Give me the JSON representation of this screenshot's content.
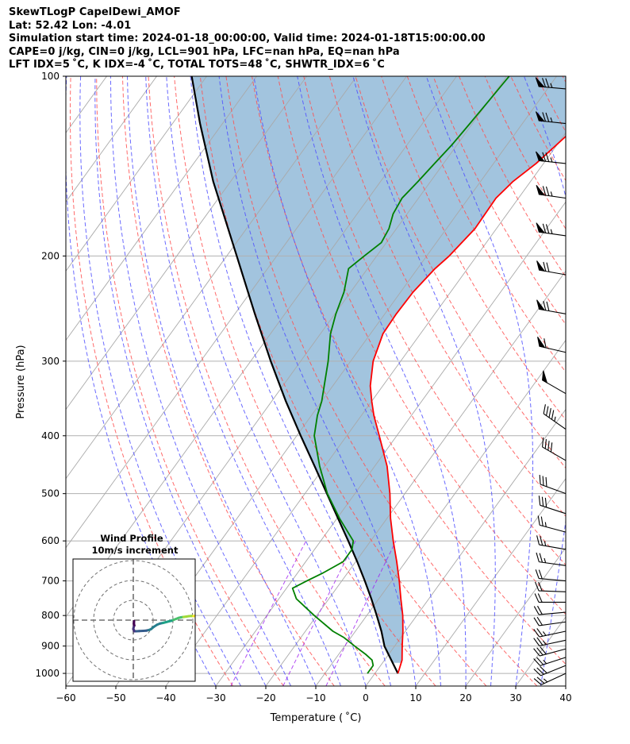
{
  "header": {
    "line1": "SkewTLogP CapelDewi_AMOF",
    "line2": "Lat: 52.42   Lon: -4.01",
    "line3": "Simulation start time: 2024-01-18_00:00:00, Valid time: 2024-01-18T15:00:00.00",
    "line4": "CAPE=0 j/kg, CIN=0 j/kg, LCL=901 hPa, LFC=nan hPa, EQ=nan hPa",
    "line5": "LFT IDX=5 ˚C, K IDX=-4 ˚C, TOTAL TOTS=48 ˚C, SHWTR_IDX=6 ˚C"
  },
  "hodograph": {
    "title": "Wind Profile",
    "subtitle": "10m/s increment"
  },
  "colors": {
    "temperature": "#ff0000",
    "dewpoint": "#008000",
    "parcel": "#000000",
    "cape_shade": "#a2c4de",
    "dry_adiabat": "#ff5050",
    "moist_adiabat": "#5050ff",
    "mixing_ratio": "#a020f0",
    "isotherm": "#a9a9a9"
  },
  "chart_data": {
    "type": "line",
    "title": "",
    "xlabel": "Temperature ( ˚C)",
    "ylabel": "Pressure (hPa)",
    "xlim": [
      -60,
      40
    ],
    "ylim_pressure": [
      1050,
      100
    ],
    "y_scale": "log",
    "skew": true,
    "x_ticks": [
      "−60",
      "−50",
      "−40",
      "−30",
      "−20",
      "−10",
      "0",
      "10",
      "20",
      "30",
      "40"
    ],
    "y_ticks": [
      "100",
      "200",
      "300",
      "400",
      "500",
      "600",
      "700",
      "800",
      "900",
      "1000"
    ],
    "grid": true,
    "series": [
      {
        "name": "Temperature",
        "pressure": [
          1000,
          950,
          900,
          850,
          800,
          750,
          700,
          650,
          600,
          550,
          500,
          450,
          400,
          370,
          350,
          330,
          300,
          270,
          250,
          230,
          210,
          200,
          180,
          160,
          150,
          140,
          120,
          100
        ],
        "values": [
          4.6,
          3.5,
          1.5,
          -0.5,
          -2.8,
          -5.6,
          -8.5,
          -11.8,
          -15.5,
          -19.3,
          -23.0,
          -27.5,
          -33.5,
          -37.5,
          -40.0,
          -42.5,
          -45.5,
          -47.5,
          -47.7,
          -47.5,
          -46.5,
          -45.5,
          -44.3,
          -44.5,
          -43.5,
          -41.5,
          -38.5,
          -36.0
        ]
      },
      {
        "name": "Dewpoint",
        "pressure": [
          1000,
          970,
          950,
          930,
          900,
          870,
          850,
          800,
          750,
          720,
          700,
          680,
          650,
          620,
          600,
          550,
          500,
          450,
          400,
          370,
          350,
          300,
          270,
          250,
          230,
          210,
          200,
          190,
          180,
          170,
          160,
          150,
          140,
          130,
          120,
          110,
          100
        ],
        "values": [
          -1.5,
          -1.5,
          -2.5,
          -4.5,
          -8.0,
          -11.5,
          -14.5,
          -20.5,
          -26.5,
          -28.8,
          -27.0,
          -25.0,
          -22.5,
          -22.5,
          -23.5,
          -29.5,
          -35.5,
          -41.0,
          -46.5,
          -48.8,
          -50.0,
          -54.5,
          -58.0,
          -59.8,
          -61.3,
          -63.8,
          -62.5,
          -61.0,
          -61.5,
          -62.8,
          -63.3,
          -62.5,
          -61.8,
          -61.0,
          -60.5,
          -60.0,
          -59.5
        ]
      },
      {
        "name": "Parcel",
        "pressure": [
          1000,
          901,
          850,
          800,
          750,
          700,
          650,
          600,
          550,
          500,
          450,
          400,
          350,
          300,
          250,
          200,
          150,
          120,
          100
        ],
        "values": [
          4.6,
          -2.0,
          -4.8,
          -8.0,
          -11.5,
          -15.4,
          -19.7,
          -24.5,
          -29.8,
          -35.6,
          -42.0,
          -49.2,
          -57.2,
          -66.0,
          -76.0,
          -88.0,
          -103.5,
          -114.5,
          -123.0
        ]
      }
    ],
    "wind_barbs": [
      {
        "pressure": 1000,
        "speed_kt": 27,
        "direction_deg": 245
      },
      {
        "pressure": 970,
        "speed_kt": 28,
        "direction_deg": 248
      },
      {
        "pressure": 940,
        "speed_kt": 27,
        "direction_deg": 252
      },
      {
        "pressure": 910,
        "speed_kt": 28,
        "direction_deg": 255
      },
      {
        "pressure": 880,
        "speed_kt": 26,
        "direction_deg": 258
      },
      {
        "pressure": 850,
        "speed_kt": 24,
        "direction_deg": 258
      },
      {
        "pressure": 820,
        "speed_kt": 22,
        "direction_deg": 262
      },
      {
        "pressure": 790,
        "speed_kt": 20,
        "direction_deg": 265
      },
      {
        "pressure": 760,
        "speed_kt": 20,
        "direction_deg": 270
      },
      {
        "pressure": 730,
        "speed_kt": 21,
        "direction_deg": 272
      },
      {
        "pressure": 700,
        "speed_kt": 22,
        "direction_deg": 275
      },
      {
        "pressure": 660,
        "speed_kt": 23,
        "direction_deg": 278
      },
      {
        "pressure": 620,
        "speed_kt": 25,
        "direction_deg": 280
      },
      {
        "pressure": 580,
        "speed_kt": 27,
        "direction_deg": 285
      },
      {
        "pressure": 540,
        "speed_kt": 29,
        "direction_deg": 288
      },
      {
        "pressure": 500,
        "speed_kt": 32,
        "direction_deg": 290
      },
      {
        "pressure": 440,
        "speed_kt": 38,
        "direction_deg": 300
      },
      {
        "pressure": 390,
        "speed_kt": 44,
        "direction_deg": 305
      },
      {
        "pressure": 340,
        "speed_kt": 52,
        "direction_deg": 300
      },
      {
        "pressure": 290,
        "speed_kt": 62,
        "direction_deg": 283
      },
      {
        "pressure": 250,
        "speed_kt": 68,
        "direction_deg": 280
      },
      {
        "pressure": 215,
        "speed_kt": 72,
        "direction_deg": 280
      },
      {
        "pressure": 185,
        "speed_kt": 75,
        "direction_deg": 278
      },
      {
        "pressure": 160,
        "speed_kt": 75,
        "direction_deg": 278
      },
      {
        "pressure": 140,
        "speed_kt": 75,
        "direction_deg": 276
      },
      {
        "pressure": 120,
        "speed_kt": 74,
        "direction_deg": 276
      },
      {
        "pressure": 105,
        "speed_kt": 74,
        "direction_deg": 275
      }
    ],
    "hodograph_points": [
      [
        0.4,
        -0.5
      ],
      [
        0.3,
        -1.8
      ],
      [
        0.5,
        -2.7
      ],
      [
        0.2,
        -3.5
      ],
      [
        0.0,
        -4.5
      ],
      [
        0.3,
        -5.0
      ],
      [
        0.5,
        -5.6
      ],
      [
        1.5,
        -5.6
      ],
      [
        3.0,
        -5.5
      ],
      [
        5.0,
        -5.4
      ],
      [
        6.5,
        -5.3
      ],
      [
        7.8,
        -5.0
      ],
      [
        9.0,
        -4.5
      ],
      [
        10.3,
        -3.4
      ],
      [
        12.0,
        -2.3
      ],
      [
        13.5,
        -1.7
      ],
      [
        15.0,
        -1.4
      ],
      [
        16.5,
        -1.0
      ],
      [
        18.0,
        -0.6
      ],
      [
        19.3,
        -0.3
      ],
      [
        20.2,
        0.1
      ],
      [
        21.5,
        0.6
      ],
      [
        22.8,
        1.1
      ],
      [
        24.0,
        1.4
      ],
      [
        25.3,
        1.6
      ],
      [
        26.8,
        1.8
      ],
      [
        28.0,
        2.0
      ],
      [
        29.3,
        2.1
      ],
      [
        30.3,
        2.0
      ],
      [
        31.5,
        2.3
      ],
      [
        32.5,
        2.6
      ],
      [
        33.5,
        2.8
      ]
    ],
    "hodograph_ring_step_ms": 10
  }
}
